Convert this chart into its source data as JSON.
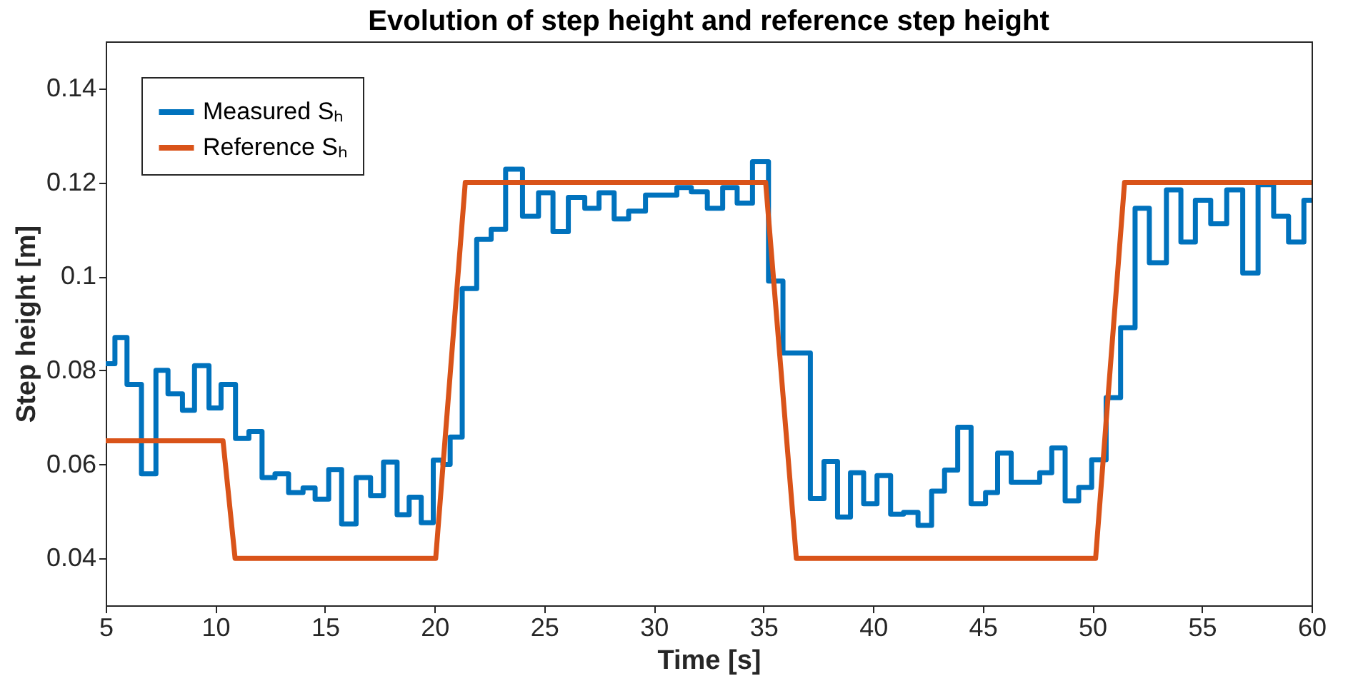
{
  "chart_data": {
    "type": "line",
    "title": "Evolution of step height and reference step height",
    "xlabel": "Time [s]",
    "ylabel": "Step height [m]",
    "xlim": [
      5,
      60
    ],
    "xticks": [
      5,
      10,
      15,
      20,
      25,
      30,
      35,
      40,
      45,
      50,
      55,
      60
    ],
    "ylim": [
      0.03,
      0.15
    ],
    "yticks": [
      0.04,
      0.06,
      0.08,
      0.1,
      0.12,
      0.14
    ],
    "grid": false,
    "legend": "top left",
    "line_style": "solid",
    "marker": "none",
    "series": [
      {
        "name": "Measured Sₕ",
        "type": "step",
        "color": "#0072bd",
        "x": [
          5,
          5.42,
          5.97,
          6.63,
          7.29,
          7.84,
          8.5,
          9.05,
          9.71,
          10.26,
          10.92,
          11.53,
          12.13,
          12.72,
          13.34,
          14.0,
          14.55,
          15.17,
          15.76,
          16.42,
          17.08,
          17.67,
          18.29,
          18.84,
          19.39,
          19.94,
          20.38,
          20.71,
          21.15,
          21.26,
          21.92,
          22.58,
          23.24,
          24.01,
          24.74,
          25.4,
          26.1,
          26.85,
          27.5,
          28.19,
          28.85,
          29.62,
          31.05,
          31.71,
          32.44,
          33.14,
          33.8,
          34.5,
          35.23,
          35.89,
          37.14,
          37.76,
          38.38,
          38.97,
          39.57,
          40.18,
          40.8,
          41.39,
          42.05,
          42.67,
          43.26,
          43.86,
          44.47,
          45.13,
          45.68,
          46.3,
          47.6,
          48.15,
          48.76,
          49.38,
          49.97,
          50.63,
          51.29,
          51.95,
          52.6,
          53.38,
          54.04,
          54.7,
          55.4,
          56.13,
          56.86,
          57.56,
          58.27,
          58.95,
          59.65,
          60
        ],
        "values": [
          0.0814,
          0.087,
          0.077,
          0.058,
          0.08,
          0.075,
          0.0715,
          0.081,
          0.072,
          0.077,
          0.0655,
          0.067,
          0.0572,
          0.058,
          0.054,
          0.055,
          0.0526,
          0.0589,
          0.0473,
          0.0572,
          0.0533,
          0.0605,
          0.0493,
          0.053,
          0.0476,
          0.0609,
          0.06,
          0.0658,
          0.0658,
          0.0974,
          0.1079,
          0.11,
          0.1228,
          0.1128,
          0.1178,
          0.1095,
          0.1168,
          0.1145,
          0.1178,
          0.1122,
          0.1139,
          0.1173,
          0.1189,
          0.118,
          0.1145,
          0.1189,
          0.1156,
          0.1244,
          0.099,
          0.0837,
          0.0527,
          0.0606,
          0.0488,
          0.0582,
          0.0516,
          0.0576,
          0.0494,
          0.0498,
          0.047,
          0.0543,
          0.0588,
          0.0679,
          0.0516,
          0.054,
          0.0624,
          0.0562,
          0.0582,
          0.0635,
          0.0522,
          0.0551,
          0.061,
          0.0742,
          0.0891,
          0.1145,
          0.1029,
          0.1184,
          0.1073,
          0.1162,
          0.1112,
          0.1184,
          0.1007,
          0.1195,
          0.1128,
          0.1073,
          0.1162,
          0.1162
        ]
      },
      {
        "name": "Reference Sₕ",
        "type": "line",
        "color": "#d95319",
        "x": [
          5,
          10.35,
          10.9,
          20.05,
          21.4,
          35.1,
          36.5,
          50.15,
          51.47,
          60
        ],
        "values": [
          0.065,
          0.065,
          0.04,
          0.04,
          0.12,
          0.12,
          0.04,
          0.04,
          0.12,
          0.12
        ]
      }
    ]
  }
}
